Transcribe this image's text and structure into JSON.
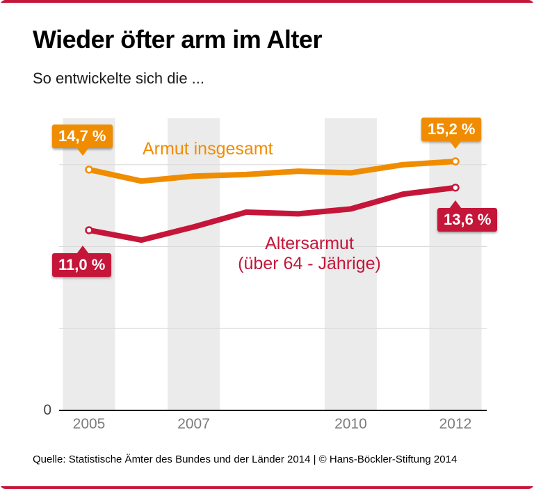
{
  "header": {
    "title": "Wieder öfter arm im Alter",
    "subtitle": "So entwickelte sich die ..."
  },
  "source": "Quelle: Statistische Ämter des Bundes und der Länder 2014 | © Hans-Böckler-Stiftung 2014",
  "colors": {
    "orange": "#f08c00",
    "red": "#c5163a",
    "band": "#ebebeb",
    "grid": "#d9d9d9",
    "axis": "#1a1a1a",
    "tick": "#7c7c7c"
  },
  "chart_data": {
    "type": "line",
    "title": "Wieder öfter arm im Alter",
    "x": [
      2005,
      2006,
      2007,
      2008,
      2009,
      2010,
      2011,
      2012
    ],
    "x_tick_labels": [
      "2005",
      "2007",
      "2010",
      "2012"
    ],
    "x_tick_years": [
      2005,
      2007,
      2010,
      2012
    ],
    "origin_label": "0",
    "unit": "%",
    "ylim": [
      0,
      17
    ],
    "grid": "horizontal-light",
    "shaded_band_years": [
      2005,
      2007,
      2010,
      2012
    ],
    "gridlines": [
      5,
      10,
      15
    ],
    "series": [
      {
        "name": "Armut insgesamt",
        "color_key": "orange",
        "values": [
          14.7,
          14.0,
          14.3,
          14.4,
          14.6,
          14.5,
          15.0,
          15.2
        ]
      },
      {
        "name": "Altersarmut (über 64-Jährige)",
        "label_lines": [
          "Altersarmut",
          "(über 64 - Jährige)"
        ],
        "color_key": "red",
        "values": [
          11.0,
          10.4,
          11.2,
          12.1,
          12.0,
          12.3,
          13.2,
          13.6
        ]
      }
    ],
    "callouts": [
      {
        "id": "total-start",
        "label": "14,7 %",
        "series": 0,
        "point": "first"
      },
      {
        "id": "total-end",
        "label": "15,2 %",
        "series": 0,
        "point": "last"
      },
      {
        "id": "elderly-start",
        "label": "11,0 %",
        "series": 1,
        "point": "first"
      },
      {
        "id": "elderly-end",
        "label": "13,6 %",
        "series": 1,
        "point": "last"
      }
    ]
  }
}
